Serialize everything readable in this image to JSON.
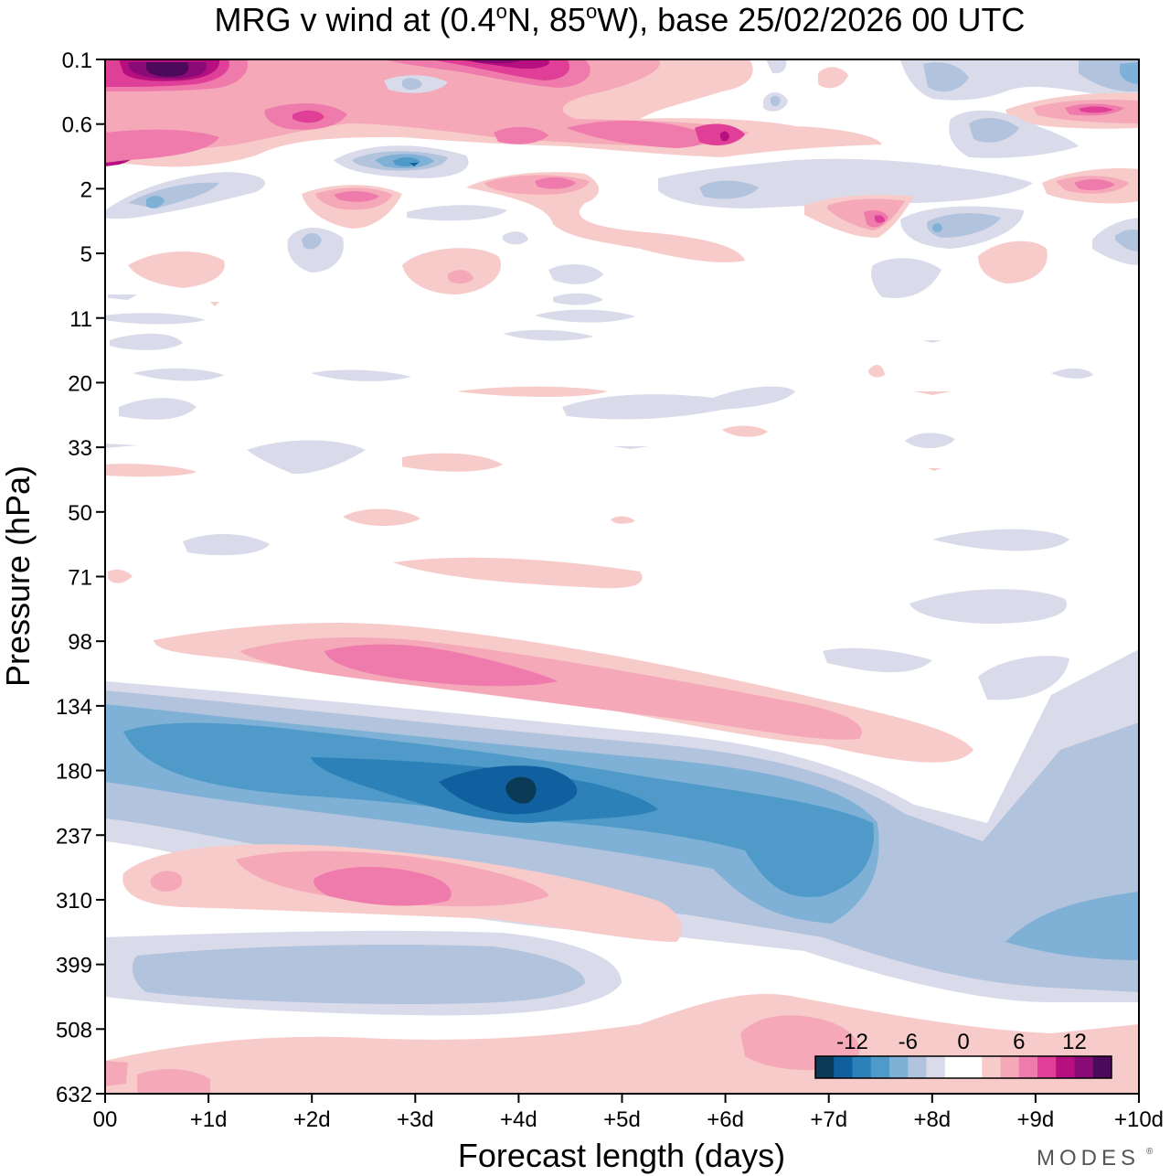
{
  "chart_data": {
    "type": "contour",
    "title": "MRG v wind at (0.4°N, 85°W),  base 25/02/2026  00 UTC",
    "title_parts": {
      "prefix": "MRG v wind at (0.4",
      "deg1": "o",
      "mid": "N, 85",
      "deg2": "o",
      "suffix": "W),  base 25/02/2026  00 UTC"
    },
    "xlabel": "Forecast length (days)",
    "ylabel": "Pressure (hPa)",
    "x_ticks": [
      "00",
      "+1d",
      "+2d",
      "+3d",
      "+4d",
      "+5d",
      "+6d",
      "+7d",
      "+8d",
      "+9d",
      "+10d"
    ],
    "y_ticks": [
      "0.1",
      "0.6",
      "2",
      "5",
      "11",
      "20",
      "33",
      "50",
      "71",
      "98",
      "134",
      "180",
      "237",
      "310",
      "399",
      "508",
      "632"
    ],
    "xlim": [
      0,
      10
    ],
    "y_axis": "pressure, log-like, decreasing upward",
    "colorbar": {
      "tick_labels": [
        "-12",
        "-6",
        "0",
        "6",
        "12"
      ],
      "colors": [
        "#0a3a55",
        "#1060a0",
        "#2c82b8",
        "#4f9ac8",
        "#7fb1d6",
        "#b2c3dd",
        "#d9dbea",
        "#ffffff",
        "#ffffff",
        "#f8cbcb",
        "#f5a8b8",
        "#ef7aac",
        "#df3f96",
        "#b60f7f",
        "#8a0a78",
        "#4d0a5a"
      ]
    },
    "features": [
      {
        "sign": "negative",
        "desc": "strong southerly core",
        "x_days": 4.0,
        "pressure_hPa": 190,
        "value": -14
      },
      {
        "sign": "negative",
        "desc": "broad negative band",
        "x_days": [
          0,
          10
        ],
        "pressure_hPa": [
          140,
          420
        ]
      },
      {
        "sign": "negative",
        "desc": "lower negative band",
        "x_days": [
          0,
          4.5
        ],
        "pressure_hPa": [
          380,
          470
        ]
      },
      {
        "sign": "positive",
        "desc": "upper positive band",
        "x_days": [
          0.5,
          8.5
        ],
        "pressure_hPa": [
          90,
          170
        ],
        "value": 8
      },
      {
        "sign": "positive",
        "desc": "mid positive band",
        "x_days": [
          0.2,
          5.5
        ],
        "pressure_hPa": [
          240,
          350
        ],
        "value": 8
      },
      {
        "sign": "positive",
        "desc": "stratopause positive core",
        "x_days": [
          0,
          5
        ],
        "pressure_hPa": [
          0.1,
          0.3
        ],
        "value": 15
      }
    ]
  },
  "branding": {
    "logo": "MODES"
  }
}
